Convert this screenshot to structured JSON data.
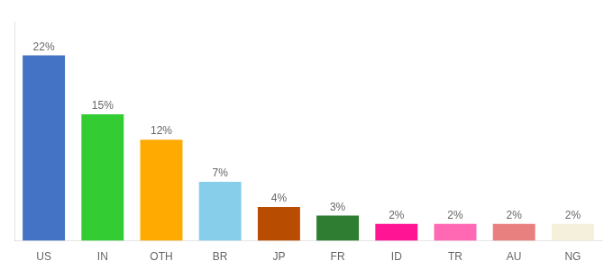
{
  "chart_data": {
    "type": "bar",
    "categories": [
      "US",
      "IN",
      "OTH",
      "BR",
      "JP",
      "FR",
      "ID",
      "TR",
      "AU",
      "NG"
    ],
    "values": [
      22,
      15,
      12,
      7,
      4,
      3,
      2,
      2,
      2,
      2
    ],
    "value_labels": [
      "22%",
      "15%",
      "12%",
      "7%",
      "4%",
      "3%",
      "2%",
      "2%",
      "2%",
      "2%"
    ],
    "colors": [
      "#4472c4",
      "#33cc33",
      "#ffaa00",
      "#87ceeb",
      "#b84c00",
      "#2e7d32",
      "#ff1493",
      "#ff69b4",
      "#e88080",
      "#f5f0dc"
    ],
    "ylim": [
      0,
      26
    ],
    "grid": false,
    "data_labels": true,
    "tick_labels": "x"
  }
}
